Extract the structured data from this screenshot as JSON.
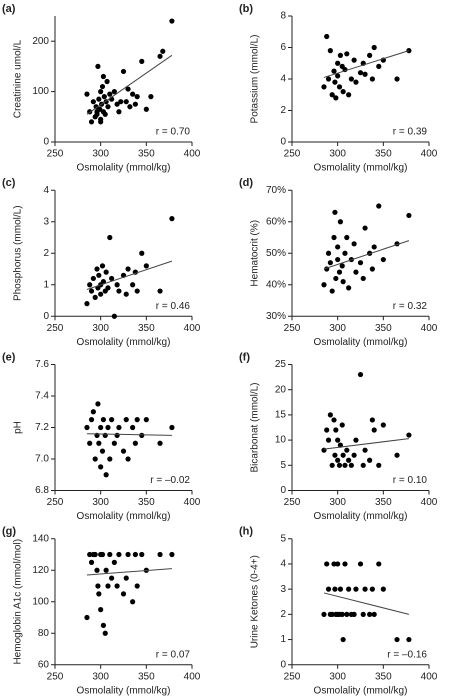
{
  "chart_data": [
    {
      "type": "scatter",
      "panel": "(a)",
      "ylabel": "Creatinine umol/L",
      "xlabel": "Osmolality (mmol/kg)",
      "annotation": "r = 0.70",
      "x": [
        285,
        288,
        290,
        292,
        294,
        295,
        296,
        297,
        298,
        299,
        300,
        300,
        301,
        302,
        303,
        304,
        305,
        306,
        307,
        308,
        310,
        312,
        315,
        318,
        320,
        322,
        325,
        328,
        330,
        332,
        335,
        338,
        340,
        345,
        350,
        355,
        365,
        368,
        378,
        300,
        296,
        303
      ],
      "y": [
        95,
        60,
        40,
        80,
        50,
        70,
        55,
        150,
        85,
        65,
        100,
        45,
        75,
        110,
        60,
        90,
        55,
        80,
        120,
        70,
        95,
        85,
        100,
        75,
        60,
        80,
        140,
        80,
        105,
        70,
        95,
        75,
        90,
        160,
        65,
        90,
        170,
        180,
        240,
        40,
        60,
        130
      ],
      "trend": {
        "x": [
          285,
          378
        ],
        "y": [
          55,
          172
        ]
      },
      "xlim": [
        250,
        400
      ],
      "xticks": [
        250,
        300,
        350,
        400
      ],
      "ylim": [
        0,
        250
      ],
      "yticks": [
        0,
        100,
        200
      ],
      "color": "#000000"
    },
    {
      "type": "scatter",
      "panel": "(b)",
      "ylabel": "Potassium (mmol/L)",
      "xlabel": "Osmolality (mmol/kg)",
      "annotation": "r = 0.39",
      "x": [
        285,
        288,
        290,
        292,
        294,
        296,
        297,
        298,
        300,
        300,
        302,
        303,
        305,
        306,
        308,
        310,
        312,
        315,
        318,
        320,
        325,
        328,
        330,
        335,
        338,
        340,
        345,
        350,
        365,
        378
      ],
      "y": [
        3.5,
        6.7,
        4.0,
        5.8,
        3.0,
        4.5,
        3.8,
        2.8,
        4.2,
        5.0,
        3.5,
        5.5,
        4.8,
        3.2,
        4.6,
        5.6,
        3.0,
        4.0,
        5.2,
        3.8,
        4.4,
        5.0,
        4.3,
        5.5,
        4.0,
        6.0,
        4.8,
        5.2,
        4.0,
        5.8
      ],
      "trend": {
        "x": [
          285,
          378
        ],
        "y": [
          4.1,
          5.8
        ]
      },
      "xlim": [
        250,
        400
      ],
      "xticks": [
        250,
        300,
        350,
        400
      ],
      "ylim": [
        0,
        8
      ],
      "yticks": [
        0,
        2,
        4,
        6,
        8
      ],
      "color": "#000000"
    },
    {
      "type": "scatter",
      "panel": "(c)",
      "ylabel": "Phosphorus (mmol/L)",
      "xlabel": "Osmolality (mmol/kg)",
      "annotation": "r = 0.46",
      "x": [
        285,
        288,
        290,
        292,
        294,
        296,
        297,
        298,
        300,
        300,
        302,
        303,
        305,
        306,
        308,
        310,
        312,
        315,
        318,
        320,
        325,
        328,
        330,
        335,
        338,
        340,
        345,
        350,
        365,
        378
      ],
      "y": [
        0.4,
        1.0,
        0.8,
        1.2,
        0.6,
        1.5,
        0.9,
        1.3,
        1.0,
        0.7,
        1.6,
        1.1,
        0.8,
        1.4,
        0.9,
        2.5,
        1.2,
        0.0,
        1.0,
        0.8,
        1.3,
        0.7,
        1.5,
        1.0,
        1.4,
        0.8,
        2.0,
        1.6,
        0.8,
        3.1
      ],
      "trend": {
        "x": [
          285,
          378
        ],
        "y": [
          0.85,
          1.75
        ]
      },
      "xlim": [
        250,
        400
      ],
      "xticks": [
        250,
        300,
        350,
        400
      ],
      "ylim": [
        0,
        4
      ],
      "yticks": [
        0,
        1,
        2,
        3,
        4
      ],
      "color": "#000000"
    },
    {
      "type": "scatter",
      "panel": "(d)",
      "ylabel": "Hematocrit (%)",
      "xlabel": "Osmolality (mmol/kg)",
      "annotation": "r = 0.32",
      "x": [
        285,
        288,
        290,
        292,
        294,
        296,
        297,
        298,
        300,
        300,
        302,
        303,
        305,
        306,
        308,
        310,
        312,
        315,
        318,
        320,
        325,
        328,
        330,
        335,
        338,
        340,
        345,
        350,
        365,
        378
      ],
      "y": [
        40,
        45,
        50,
        47,
        38,
        55,
        63,
        42,
        48,
        52,
        44,
        60,
        46,
        41,
        50,
        55,
        39,
        48,
        53,
        44,
        47,
        42,
        58,
        50,
        45,
        52,
        65,
        48,
        53,
        62
      ],
      "trend": {
        "x": [
          285,
          378
        ],
        "y": [
          45,
          54
        ]
      },
      "xlim": [
        250,
        400
      ],
      "xticks": [
        250,
        300,
        350,
        400
      ],
      "ylim": [
        30,
        70
      ],
      "yticks": [
        {
          "value": 30,
          "label": "30%"
        },
        {
          "value": 40,
          "label": "40%"
        },
        {
          "value": 50,
          "label": "50%"
        },
        {
          "value": 60,
          "label": "60%"
        },
        {
          "value": 70,
          "label": "70%"
        }
      ],
      "color": "#000000"
    },
    {
      "type": "scatter",
      "panel": "(e)",
      "ylabel": "pH",
      "xlabel": "Osmolality (mmol/kg)",
      "annotation": "r = –0.02",
      "x": [
        285,
        288,
        290,
        292,
        294,
        296,
        297,
        298,
        300,
        300,
        302,
        303,
        305,
        306,
        308,
        310,
        312,
        315,
        318,
        320,
        325,
        328,
        330,
        335,
        338,
        340,
        345,
        350,
        365,
        378
      ],
      "y": [
        7.2,
        7.1,
        7.25,
        7.3,
        7.0,
        7.15,
        7.35,
        7.1,
        7.2,
        6.95,
        7.05,
        7.25,
        7.15,
        6.9,
        7.2,
        7.0,
        7.25,
        7.1,
        7.15,
        7.2,
        7.05,
        7.25,
        7.0,
        7.2,
        7.1,
        7.25,
        7.15,
        7.25,
        7.1,
        7.2
      ],
      "trend": {
        "x": [
          285,
          378
        ],
        "y": [
          7.16,
          7.15
        ]
      },
      "xlim": [
        250,
        400
      ],
      "xticks": [
        250,
        300,
        350,
        400
      ],
      "ylim": [
        6.8,
        7.6
      ],
      "yticks": [
        6.8,
        {
          "value": 7,
          "label": "7.0"
        },
        7.2,
        7.4,
        7.6
      ],
      "color": "#000000"
    },
    {
      "type": "scatter",
      "panel": "(f)",
      "ylabel": "Bicarbonat (mmol/L)",
      "xlabel": "Osmolality (mmol/kg)",
      "annotation": "r = 0.10",
      "x": [
        285,
        288,
        290,
        292,
        294,
        296,
        297,
        298,
        300,
        300,
        302,
        303,
        305,
        306,
        308,
        310,
        312,
        315,
        318,
        320,
        325,
        328,
        330,
        335,
        338,
        340,
        345,
        350,
        365,
        378
      ],
      "y": [
        8,
        12,
        10,
        15,
        5,
        14,
        7,
        12,
        6,
        10,
        5,
        9,
        13,
        7,
        5,
        8,
        6,
        5,
        7,
        10,
        23,
        5,
        8,
        6,
        14,
        12,
        5,
        13,
        7,
        11
      ],
      "trend": {
        "x": [
          285,
          378
        ],
        "y": [
          8.2,
          10.3
        ]
      },
      "xlim": [
        250,
        400
      ],
      "xticks": [
        250,
        300,
        350,
        400
      ],
      "ylim": [
        0,
        25
      ],
      "yticks": [
        0,
        5,
        10,
        15,
        20,
        25
      ],
      "color": "#000000"
    },
    {
      "type": "scatter",
      "panel": "(g)",
      "ylabel": "Hemoglobin A1c (mmol/mol)",
      "xlabel": "Osmolality (mmol/kg)",
      "annotation": "r = 0.07",
      "x": [
        285,
        288,
        290,
        292,
        294,
        296,
        297,
        298,
        300,
        300,
        302,
        303,
        305,
        306,
        308,
        310,
        312,
        315,
        318,
        320,
        325,
        328,
        330,
        335,
        338,
        340,
        345,
        350,
        365,
        378
      ],
      "y": [
        90,
        130,
        125,
        130,
        130,
        120,
        110,
        105,
        130,
        95,
        130,
        85,
        80,
        120,
        110,
        130,
        115,
        125,
        110,
        130,
        105,
        115,
        130,
        100,
        130,
        110,
        130,
        120,
        130,
        130
      ],
      "trend": {
        "x": [
          285,
          378
        ],
        "y": [
          117,
          121
        ]
      },
      "xlim": [
        250,
        400
      ],
      "xticks": [
        250,
        300,
        350,
        400
      ],
      "ylim": [
        60,
        140
      ],
      "yticks": [
        60,
        80,
        100,
        120,
        140
      ],
      "color": "#000000"
    },
    {
      "type": "scatter",
      "panel": "(h)",
      "ylabel": "Urine Ketones (0-4+)",
      "xlabel": "Osmolality (mmol/kg)",
      "annotation": "r = –0.16",
      "x": [
        285,
        288,
        290,
        292,
        294,
        296,
        297,
        298,
        300,
        300,
        302,
        303,
        305,
        306,
        308,
        310,
        312,
        315,
        318,
        320,
        325,
        328,
        330,
        335,
        338,
        340,
        345,
        350,
        365,
        378
      ],
      "y": [
        2,
        4,
        3,
        2,
        2,
        4,
        3,
        2,
        2,
        4,
        2,
        3,
        2,
        1,
        4,
        2,
        3,
        2,
        2,
        3,
        4,
        2,
        3,
        2,
        3,
        2,
        4,
        3,
        1,
        1
      ],
      "trend": {
        "x": [
          285,
          378
        ],
        "y": [
          2.85,
          2.0
        ]
      },
      "xlim": [
        250,
        400
      ],
      "xticks": [
        250,
        300,
        350,
        400
      ],
      "ylim": [
        0,
        5
      ],
      "yticks": [
        0,
        1,
        2,
        3,
        4,
        5
      ],
      "color": "#000000"
    }
  ]
}
